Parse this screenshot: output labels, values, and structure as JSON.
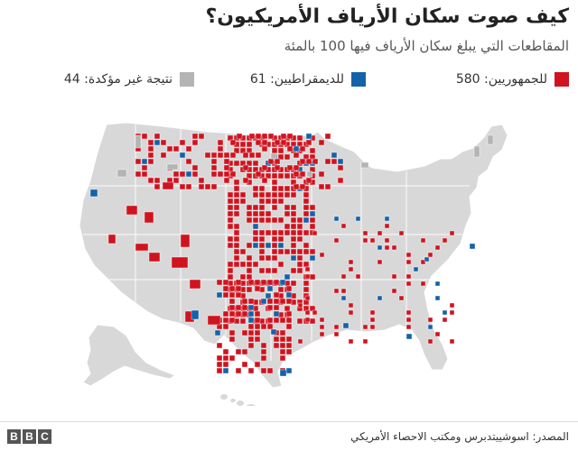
{
  "header": {
    "title": "كيف صوت سكان الأرياف الأمريكيون؟",
    "subtitle": "المقاطعات التي يبلغ سكان الأرياف فيها 100 بالمئة"
  },
  "legend": {
    "items": [
      {
        "label": "للجمهوريين: 580",
        "color": "#d0131e"
      },
      {
        "label": "للديمقراطيين: 61",
        "color": "#1462a8"
      },
      {
        "label": "نتيجة غير مؤكدة: 44",
        "color": "#b4b4b4"
      }
    ]
  },
  "map": {
    "base_color": "#d8d8d8",
    "border_color": "#ffffff",
    "counts": {
      "republican": 580,
      "democrat": 61,
      "uncertain": 44
    }
  },
  "footer": {
    "source": "المصدر: اسوشييتدبرس ومكتب الاحصاء الأمريكي",
    "logo_letters": [
      "B",
      "B",
      "C"
    ]
  }
}
